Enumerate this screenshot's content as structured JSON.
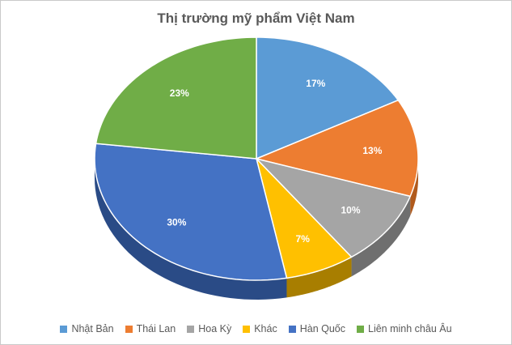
{
  "chart_data": {
    "type": "pie",
    "title": "Thị trường mỹ phẩm Việt Nam",
    "slices": [
      {
        "name": "Nhật Bản",
        "value": 17,
        "label": "17%",
        "color": "#5b9bd5",
        "side": "#3e75a8"
      },
      {
        "name": "Thái Lan",
        "value": 13,
        "label": "13%",
        "color": "#ed7d31",
        "side": "#b15a1c"
      },
      {
        "name": "Hoa Kỳ",
        "value": 10,
        "label": "10%",
        "color": "#a5a5a5",
        "side": "#6f6f6f"
      },
      {
        "name": "Khác",
        "value": 7,
        "label": "7%",
        "color": "#ffc000",
        "side": "#a87e00"
      },
      {
        "name": "Hàn Quốc",
        "value": 30,
        "label": "30%",
        "color": "#4472c4",
        "side": "#2a4b86"
      },
      {
        "name": "Liên minh châu Âu",
        "value": 23,
        "label": "23%",
        "color": "#70ad47",
        "side": "#4c7a2d"
      }
    ],
    "legend_position": "bottom"
  }
}
